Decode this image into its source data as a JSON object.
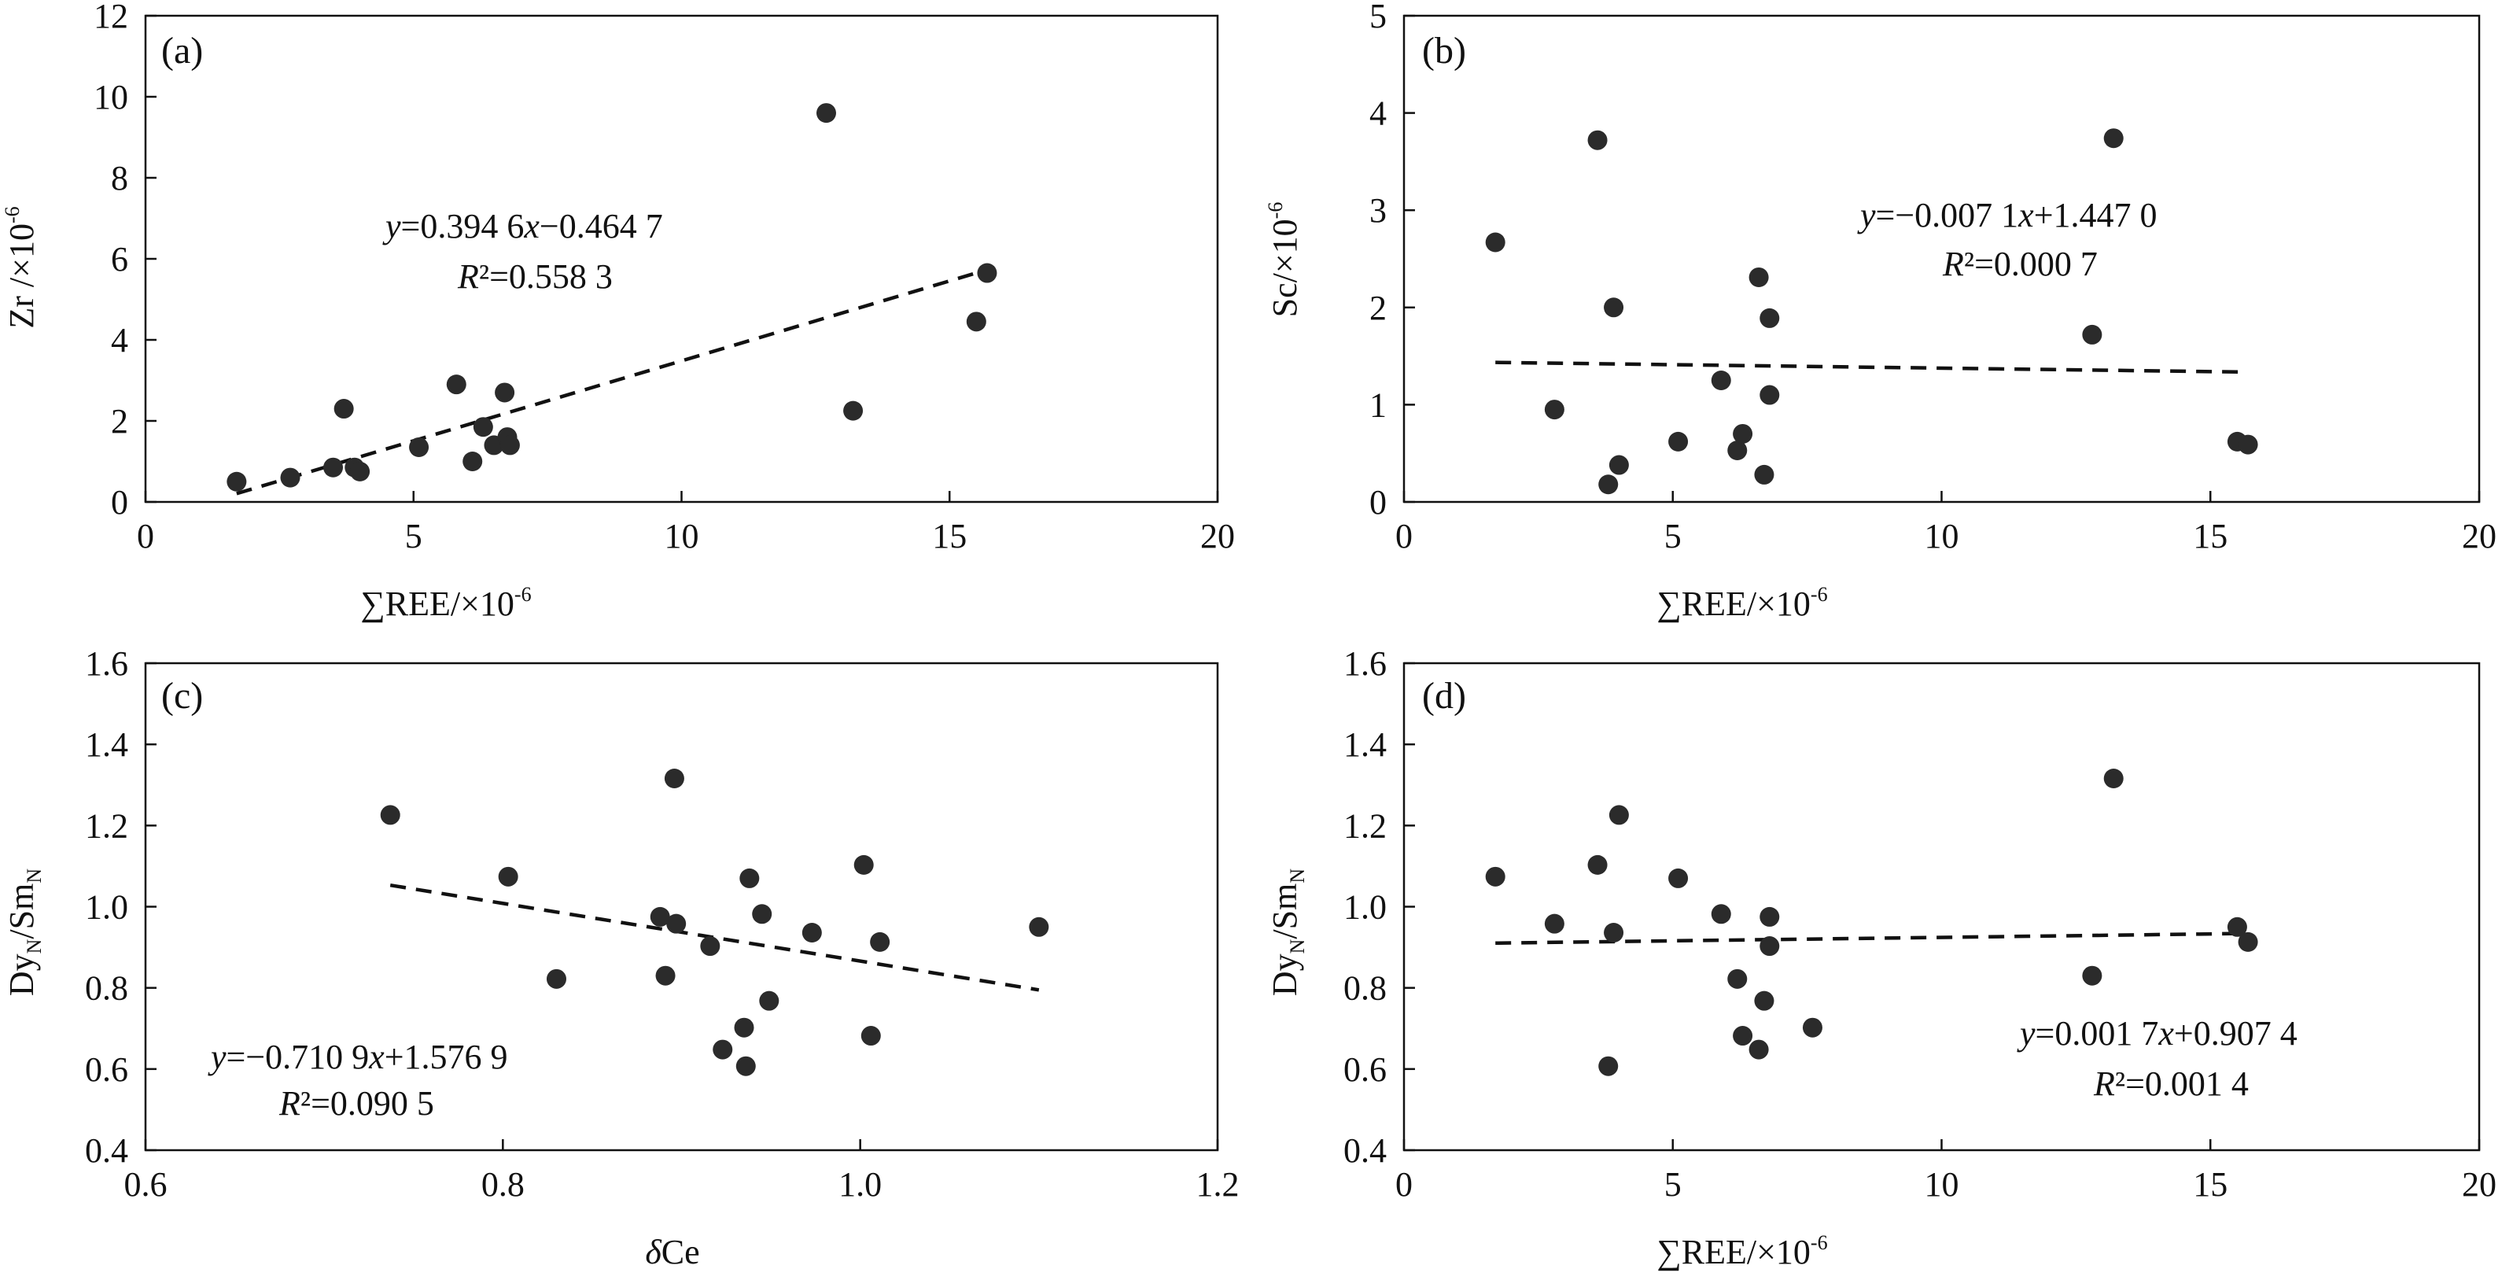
{
  "chart_data": [
    {
      "id": "a",
      "type": "scatter",
      "panel_label": "(a)",
      "xlabel": {
        "main": "∑REE/×10",
        "sup": "-6"
      },
      "ylabel": {
        "main": "Zr /×10",
        "sup": "-6"
      },
      "xlim": [
        0,
        20
      ],
      "ylim": [
        0,
        12
      ],
      "xticks": [
        0,
        5,
        10,
        15,
        20
      ],
      "xtick_labels": [
        "0",
        "5",
        "10",
        "15",
        "20"
      ],
      "yticks": [
        0,
        2,
        4,
        6,
        8,
        10,
        12
      ],
      "ytick_labels": [
        "0",
        "2",
        "4",
        "6",
        "8",
        "10",
        "12"
      ],
      "points": [
        {
          "x": 1.7,
          "y": 0.5
        },
        {
          "x": 2.7,
          "y": 0.6
        },
        {
          "x": 3.5,
          "y": 0.85
        },
        {
          "x": 3.7,
          "y": 2.3
        },
        {
          "x": 3.9,
          "y": 0.85
        },
        {
          "x": 4.0,
          "y": 0.75
        },
        {
          "x": 5.1,
          "y": 1.35
        },
        {
          "x": 5.8,
          "y": 2.9
        },
        {
          "x": 6.1,
          "y": 1.0
        },
        {
          "x": 6.3,
          "y": 1.85
        },
        {
          "x": 6.5,
          "y": 1.4
        },
        {
          "x": 6.7,
          "y": 2.7
        },
        {
          "x": 6.75,
          "y": 1.6
        },
        {
          "x": 6.8,
          "y": 1.4
        },
        {
          "x": 12.7,
          "y": 9.6
        },
        {
          "x": 13.2,
          "y": 2.25
        },
        {
          "x": 15.5,
          "y": 4.45
        },
        {
          "x": 15.7,
          "y": 5.65
        }
      ],
      "trendline": {
        "slope": 0.3946,
        "intercept": -0.4647,
        "x_range": [
          1.7,
          15.7
        ]
      },
      "equation": {
        "lhs": "y",
        "rest": "=0.394 6",
        "var": "x",
        "tail": "−0.464 7"
      },
      "r2": {
        "R": "R",
        "rest": "²=0.558 3"
      }
    },
    {
      "id": "b",
      "type": "scatter",
      "panel_label": "(b)",
      "xlabel": {
        "main": "∑REE/×10",
        "sup": "-6"
      },
      "ylabel": {
        "main": "Sc/×10",
        "sup": "-6"
      },
      "xlim": [
        0,
        20
      ],
      "ylim": [
        0,
        5
      ],
      "xticks": [
        0,
        5,
        10,
        15,
        20
      ],
      "xtick_labels": [
        "0",
        "5",
        "10",
        "15",
        "20"
      ],
      "yticks": [
        0,
        1,
        2,
        3,
        4,
        5
      ],
      "ytick_labels": [
        "0",
        "1",
        "2",
        "3",
        "4",
        "5"
      ],
      "points": [
        {
          "x": 1.7,
          "y": 2.67
        },
        {
          "x": 2.8,
          "y": 0.95
        },
        {
          "x": 3.6,
          "y": 3.72
        },
        {
          "x": 3.8,
          "y": 0.18
        },
        {
          "x": 3.9,
          "y": 2.0
        },
        {
          "x": 4.0,
          "y": 0.38
        },
        {
          "x": 5.1,
          "y": 0.62
        },
        {
          "x": 5.9,
          "y": 1.25
        },
        {
          "x": 6.2,
          "y": 0.53
        },
        {
          "x": 6.3,
          "y": 0.7
        },
        {
          "x": 6.6,
          "y": 2.31
        },
        {
          "x": 6.7,
          "y": 0.28
        },
        {
          "x": 6.8,
          "y": 1.1
        },
        {
          "x": 6.8,
          "y": 1.89
        },
        {
          "x": 12.8,
          "y": 1.72
        },
        {
          "x": 13.2,
          "y": 3.74
        },
        {
          "x": 15.5,
          "y": 0.62
        },
        {
          "x": 15.7,
          "y": 0.59
        }
      ],
      "trendline": {
        "slope": -0.0071,
        "intercept": 1.447,
        "x_range": [
          1.7,
          15.7
        ]
      },
      "equation": {
        "lhs": "y",
        "rest": "=−0.007 1",
        "var": "x",
        "tail": "+1.447 0"
      },
      "r2": {
        "R": "R",
        "rest": "²=0.000 7"
      }
    },
    {
      "id": "c",
      "type": "scatter",
      "panel_label": "(c)",
      "xlabel": {
        "delta": "δ",
        "main": "Ce"
      },
      "ylabel": {
        "a": "Dy",
        "sub1": "N",
        "b": "/Sm",
        "sub2": "N"
      },
      "xlim": [
        0.6,
        1.2
      ],
      "ylim": [
        0.4,
        1.6
      ],
      "xticks": [
        0.6,
        0.8,
        1.0,
        1.2
      ],
      "xtick_labels": [
        "0.6",
        "0.8",
        "1.0",
        "1.2"
      ],
      "yticks": [
        0.4,
        0.6,
        0.8,
        1.0,
        1.2,
        1.4,
        1.6
      ],
      "ytick_labels": [
        "0.4",
        "0.6",
        "0.8",
        "1.0",
        "1.2",
        "1.4",
        "1.6"
      ],
      "points": [
        {
          "x": 0.737,
          "y": 1.226
        },
        {
          "x": 0.803,
          "y": 1.074
        },
        {
          "x": 0.83,
          "y": 0.822
        },
        {
          "x": 0.888,
          "y": 0.975
        },
        {
          "x": 0.891,
          "y": 0.83
        },
        {
          "x": 0.897,
          "y": 0.958
        },
        {
          "x": 0.896,
          "y": 1.316
        },
        {
          "x": 0.916,
          "y": 0.903
        },
        {
          "x": 0.923,
          "y": 0.648
        },
        {
          "x": 0.935,
          "y": 0.702
        },
        {
          "x": 0.936,
          "y": 0.607
        },
        {
          "x": 0.938,
          "y": 1.07
        },
        {
          "x": 0.945,
          "y": 0.982
        },
        {
          "x": 0.949,
          "y": 0.768
        },
        {
          "x": 0.973,
          "y": 0.936
        },
        {
          "x": 1.002,
          "y": 1.103
        },
        {
          "x": 1.006,
          "y": 0.682
        },
        {
          "x": 1.011,
          "y": 0.913
        },
        {
          "x": 1.1,
          "y": 0.95
        }
      ],
      "trendline": {
        "slope": -0.7109,
        "intercept": 1.5769,
        "x_range": [
          0.737,
          1.1
        ]
      },
      "equation": {
        "lhs": "y",
        "rest": "=−0.710 9",
        "var": "x",
        "tail": "+1.576 9"
      },
      "r2": {
        "R": "R",
        "rest": "²=0.090 5"
      }
    },
    {
      "id": "d",
      "type": "scatter",
      "panel_label": "(d)",
      "xlabel": {
        "main": "∑REE/×10",
        "sup": "-6"
      },
      "ylabel": {
        "a": "Dy",
        "sub1": "N",
        "b": "/Sm",
        "sub2": "N"
      },
      "xlim": [
        0,
        20
      ],
      "ylim": [
        0.4,
        1.6
      ],
      "xticks": [
        0,
        5,
        10,
        15,
        20
      ],
      "xtick_labels": [
        "0",
        "5",
        "10",
        "15",
        "20"
      ],
      "yticks": [
        0.4,
        0.6,
        0.8,
        1.0,
        1.2,
        1.4,
        1.6
      ],
      "ytick_labels": [
        "0.4",
        "0.6",
        "0.8",
        "1.0",
        "1.2",
        "1.4",
        "1.6"
      ],
      "points": [
        {
          "x": 1.7,
          "y": 1.074
        },
        {
          "x": 2.8,
          "y": 0.958
        },
        {
          "x": 3.6,
          "y": 1.103
        },
        {
          "x": 3.8,
          "y": 0.607
        },
        {
          "x": 3.9,
          "y": 0.936
        },
        {
          "x": 4.0,
          "y": 1.226
        },
        {
          "x": 5.1,
          "y": 1.07
        },
        {
          "x": 5.9,
          "y": 0.982
        },
        {
          "x": 6.2,
          "y": 0.822
        },
        {
          "x": 6.3,
          "y": 0.682
        },
        {
          "x": 6.6,
          "y": 0.648
        },
        {
          "x": 6.7,
          "y": 0.768
        },
        {
          "x": 6.8,
          "y": 0.975
        },
        {
          "x": 6.8,
          "y": 0.903
        },
        {
          "x": 7.6,
          "y": 0.702
        },
        {
          "x": 12.8,
          "y": 0.83
        },
        {
          "x": 13.2,
          "y": 1.316
        },
        {
          "x": 15.5,
          "y": 0.95
        },
        {
          "x": 15.7,
          "y": 0.913
        }
      ],
      "trendline": {
        "slope": 0.0017,
        "intercept": 0.9074,
        "x_range": [
          1.7,
          15.7
        ]
      },
      "equation": {
        "lhs": "y",
        "rest": "=0.001 7",
        "var": "x",
        "tail": "+0.907 4"
      },
      "r2": {
        "R": "R",
        "rest": "²=0.001 4"
      }
    }
  ]
}
